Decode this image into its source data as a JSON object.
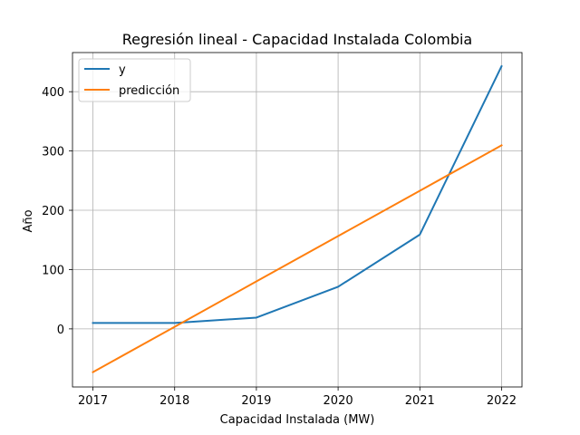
{
  "chart_data": {
    "type": "line",
    "title": "Regresión lineal - Capacidad Instalada Colombia",
    "xlabel": "Capacidad Instalada (MW)",
    "ylabel": "Año",
    "x": [
      2017,
      2018,
      2019,
      2020,
      2021,
      2022
    ],
    "x_tick_labels": [
      "2017",
      "2018",
      "2019",
      "2020",
      "2021",
      "2022"
    ],
    "y_ticks": [
      0,
      100,
      200,
      300,
      400
    ],
    "y_tick_labels": [
      "0",
      "100",
      "200",
      "300",
      "400"
    ],
    "xlim": [
      2016.75,
      2022.25
    ],
    "ylim": [
      -98,
      466
    ],
    "grid": true,
    "legend_position": "top-left",
    "series": [
      {
        "name": "y",
        "color": "#1f77b4",
        "values": [
          10,
          10,
          19,
          71,
          159,
          443
        ]
      },
      {
        "name": "predicción",
        "color": "#ff7f0e",
        "values": [
          -73,
          3.5,
          80,
          156.5,
          233,
          309.5
        ]
      }
    ]
  }
}
